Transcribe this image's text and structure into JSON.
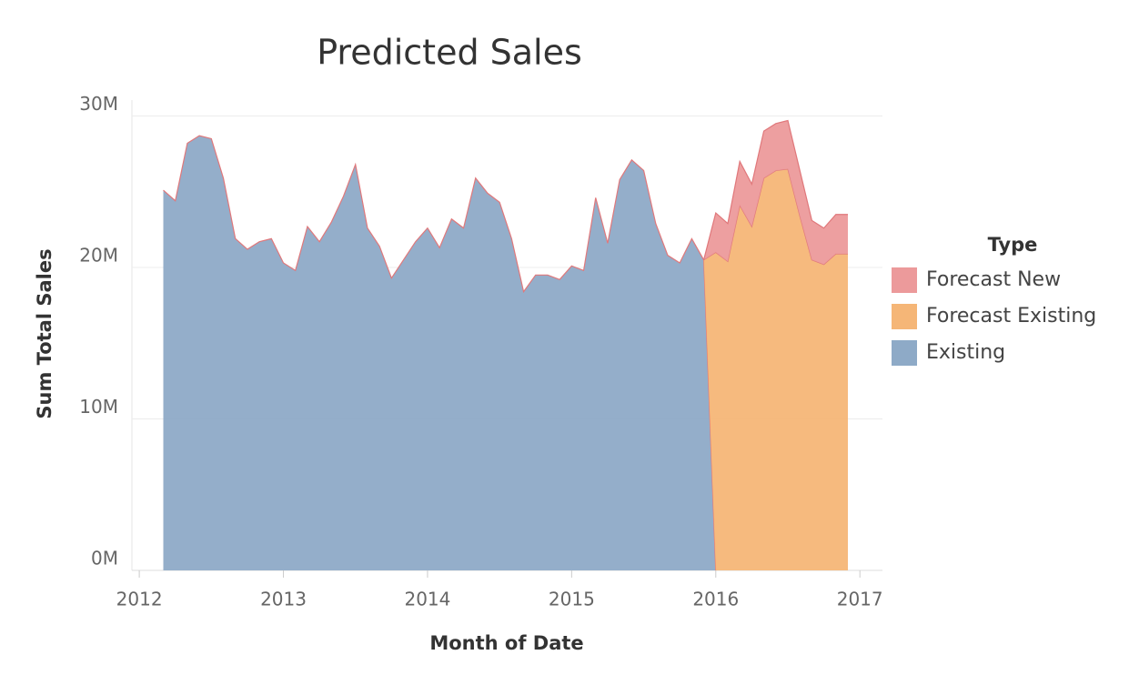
{
  "chart_data": {
    "type": "stacked-area",
    "title": "Predicted Sales",
    "x_label": "Month of Date",
    "y_label": "Sum Total Sales",
    "legend_title": "Type",
    "legend": "right",
    "grid": true,
    "x": [
      "2012-03",
      "2012-04",
      "2012-05",
      "2012-06",
      "2012-07",
      "2012-08",
      "2012-09",
      "2012-10",
      "2012-11",
      "2012-12",
      "2013-01",
      "2013-02",
      "2013-03",
      "2013-04",
      "2013-05",
      "2013-06",
      "2013-07",
      "2013-08",
      "2013-09",
      "2013-10",
      "2013-11",
      "2013-12",
      "2014-01",
      "2014-02",
      "2014-03",
      "2014-04",
      "2014-05",
      "2014-06",
      "2014-07",
      "2014-08",
      "2014-09",
      "2014-10",
      "2014-11",
      "2014-12",
      "2015-01",
      "2015-02",
      "2015-03",
      "2015-04",
      "2015-05",
      "2015-06",
      "2015-07",
      "2015-08",
      "2015-09",
      "2015-10",
      "2015-11",
      "2015-12",
      "2016-01",
      "2016-02",
      "2016-03",
      "2016-04",
      "2016-05",
      "2016-06",
      "2016-07",
      "2016-08",
      "2016-09",
      "2016-10",
      "2016-11",
      "2016-12"
    ],
    "xlim": [
      "2011-11",
      "2017-02"
    ],
    "xticks": [
      {
        "value": "2012-01",
        "label": "2012"
      },
      {
        "value": "2013-01",
        "label": "2013"
      },
      {
        "value": "2014-01",
        "label": "2014"
      },
      {
        "value": "2015-01",
        "label": "2015"
      },
      {
        "value": "2016-01",
        "label": "2016"
      },
      {
        "value": "2017-01",
        "label": "2017"
      }
    ],
    "ylim": [
      0,
      31000000
    ],
    "yticks": [
      {
        "value": 0,
        "label": "0M"
      },
      {
        "value": 10000000,
        "label": "10M"
      },
      {
        "value": 20000000,
        "label": "20M"
      },
      {
        "value": 30000000,
        "label": "30M"
      }
    ],
    "series": [
      {
        "name": "Existing",
        "color": "#8eaac7",
        "values": [
          25100000,
          24400000,
          28200000,
          28700000,
          28500000,
          25900000,
          21900000,
          21200000,
          21700000,
          21900000,
          20300000,
          19800000,
          22700000,
          21700000,
          23000000,
          24700000,
          26800000,
          22600000,
          21400000,
          19300000,
          20500000,
          21700000,
          22600000,
          21300000,
          23200000,
          22600000,
          25900000,
          24900000,
          24300000,
          21900000,
          18400000,
          19500000,
          19500000,
          19200000,
          20100000,
          19800000,
          24600000,
          21600000,
          25800000,
          27100000,
          26400000,
          22900000,
          20800000,
          20300000,
          21900000,
          20500000,
          0,
          null,
          null,
          null,
          null,
          null,
          null,
          null,
          null,
          null,
          null,
          null
        ]
      },
      {
        "name": "Forecast Existing",
        "color": "#f5b677",
        "values": [
          null,
          null,
          null,
          null,
          null,
          null,
          null,
          null,
          null,
          null,
          null,
          null,
          null,
          null,
          null,
          null,
          null,
          null,
          null,
          null,
          null,
          null,
          null,
          null,
          null,
          null,
          null,
          null,
          null,
          null,
          null,
          null,
          null,
          null,
          null,
          null,
          null,
          null,
          null,
          null,
          null,
          null,
          null,
          null,
          null,
          0,
          21000000,
          20400000,
          24100000,
          22700000,
          25900000,
          26400000,
          26500000,
          23400000,
          20500000,
          20200000,
          20900000,
          20900000
        ]
      },
      {
        "name": "Forecast New",
        "color": "#ec9a9b",
        "values": [
          null,
          null,
          null,
          null,
          null,
          null,
          null,
          null,
          null,
          null,
          null,
          null,
          null,
          null,
          null,
          null,
          null,
          null,
          null,
          null,
          null,
          null,
          null,
          null,
          null,
          null,
          null,
          null,
          null,
          null,
          null,
          null,
          null,
          null,
          null,
          null,
          null,
          null,
          null,
          null,
          null,
          null,
          null,
          null,
          null,
          0,
          2600000,
          2500000,
          2900000,
          2800000,
          3100000,
          3100000,
          3200000,
          3000000,
          2600000,
          2400000,
          2600000,
          2600000
        ]
      }
    ]
  }
}
